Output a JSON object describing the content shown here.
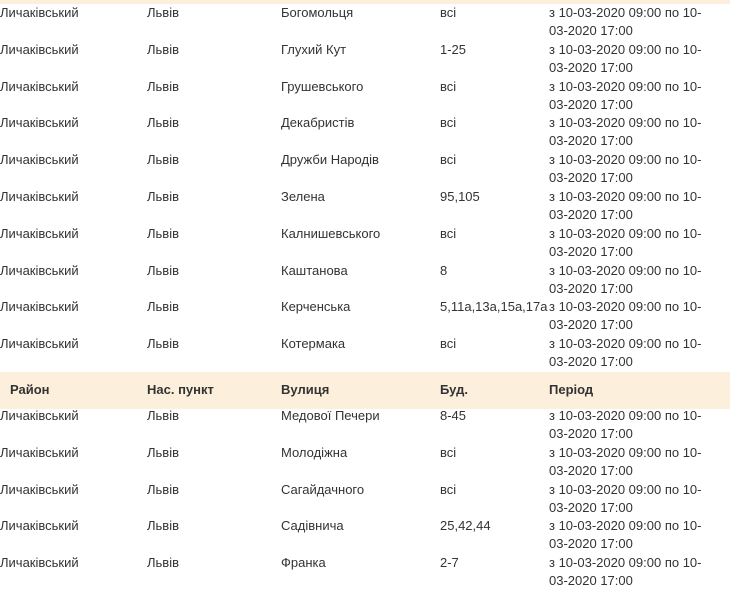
{
  "table": {
    "rows_top": [
      [
        "Личаківський",
        "Львів",
        "Богомольця",
        "всі",
        "з 10-03-2020 09:00 по 10-03-2020 17:00"
      ],
      [
        "Личаківський",
        "Львів",
        "Глухий Кут",
        "1-25",
        "з 10-03-2020 09:00 по 10-03-2020 17:00"
      ],
      [
        "Личаківський",
        "Львів",
        "Грушевського",
        "всі",
        "з 10-03-2020 09:00 по 10-03-2020 17:00"
      ],
      [
        "Личаківський",
        "Львів",
        "Декабристів",
        "всі",
        "з 10-03-2020 09:00 по 10-03-2020 17:00"
      ],
      [
        "Личаківський",
        "Львів",
        "Дружби Народів",
        "всі",
        "з 10-03-2020 09:00 по 10-03-2020 17:00"
      ],
      [
        "Личаківський",
        "Львів",
        "Зелена",
        "95,105",
        "з 10-03-2020 09:00 по 10-03-2020 17:00"
      ],
      [
        "Личаківський",
        "Львів",
        "Калнишевського",
        "всі",
        "з 10-03-2020 09:00 по 10-03-2020 17:00"
      ],
      [
        "Личаківський",
        "Львів",
        "Каштанова",
        "8",
        "з 10-03-2020 09:00 по 10-03-2020 17:00"
      ],
      [
        "Личаківський",
        "Львів",
        "Керченська",
        "5,11а,13а,15а,17а",
        "з 10-03-2020 09:00 по 10-03-2020 17:00"
      ],
      [
        "Личаківський",
        "Львів",
        "Котермака",
        "всі",
        "з 10-03-2020 09:00 по 10-03-2020 17:00"
      ]
    ],
    "header": [
      "Район",
      "Нас. пункт",
      "Вулиця",
      "Буд.",
      "Період"
    ],
    "rows_bottom": [
      [
        "Личаківський",
        "Львів",
        "Медової Печери",
        "8-45",
        "з 10-03-2020 09:00 по 10-03-2020 17:00"
      ],
      [
        "Личаківський",
        "Львів",
        "Молодіжна",
        "всі",
        "з 10-03-2020 09:00 по 10-03-2020 17:00"
      ],
      [
        "Личаківський",
        "Львів",
        "Сагайдачного",
        "всі",
        "з 10-03-2020 09:00 по 10-03-2020 17:00"
      ],
      [
        "Личаківський",
        "Львів",
        "Садівнича",
        "25,42,44",
        "з 10-03-2020 09:00 по 10-03-2020 17:00"
      ],
      [
        "Личаківський",
        "Львів",
        "Франка",
        "2-7",
        "з 10-03-2020 09:00 по 10-03-2020 17:00"
      ]
    ]
  }
}
